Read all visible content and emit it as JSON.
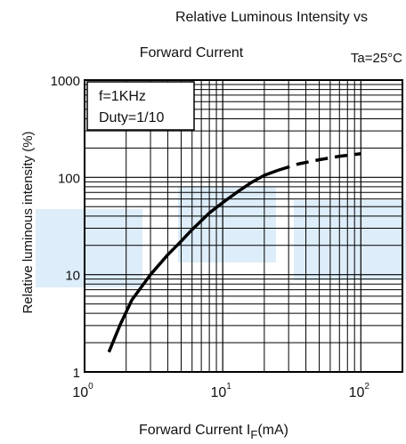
{
  "chart_data": {
    "type": "line",
    "title_line1": "Relative Luminous Intensity vs",
    "title_line2": "Forward Current",
    "condition": "Ta=25°C",
    "annotation_lines": [
      "f=1KHz",
      "Duty=1/10"
    ],
    "xlabel_prefix": "Forward Current  I",
    "xlabel_subscript": "F",
    "xlabel_suffix": "(mA)",
    "ylabel": "Relative luminous intensity  (%)",
    "x_scale": "log",
    "y_scale": "log",
    "xlim": [
      1,
      200
    ],
    "ylim": [
      1,
      1000
    ],
    "x_ticks": [
      {
        "value": 1,
        "base": "10",
        "exp": "0"
      },
      {
        "value": 10,
        "base": "10",
        "exp": "1"
      },
      {
        "value": 100,
        "base": "10",
        "exp": "2"
      }
    ],
    "y_ticks": [
      {
        "value": 1,
        "label": "1"
      },
      {
        "value": 10,
        "label": "10"
      },
      {
        "value": 100,
        "label": "100"
      },
      {
        "value": 1000,
        "label": "1000"
      }
    ],
    "grid": true,
    "series": [
      {
        "style": "solid",
        "color": "#000000",
        "x": [
          1.5,
          1.8,
          2.2,
          3,
          4,
          5,
          6,
          8,
          10,
          13,
          16,
          20,
          25
        ],
        "y": [
          1.6,
          3,
          5.5,
          10,
          16,
          22,
          29,
          43,
          55,
          72,
          88,
          105,
          118
        ]
      },
      {
        "style": "dashed",
        "color": "#000000",
        "x": [
          25,
          35,
          50,
          70,
          100
        ],
        "y": [
          118,
          137,
          152,
          165,
          175
        ]
      }
    ],
    "watermark_color": "#cfe6f6"
  }
}
